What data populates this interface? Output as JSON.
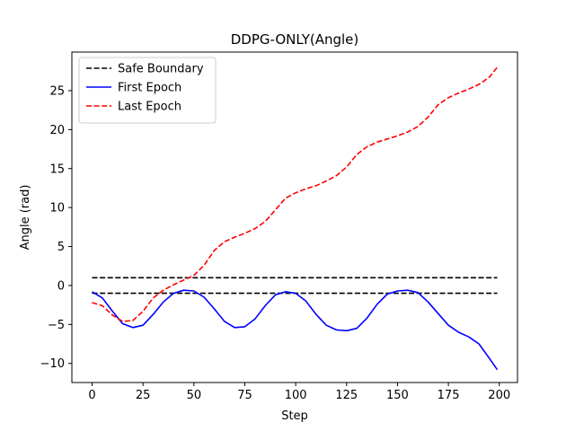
{
  "chart_data": {
    "type": "line",
    "title": "DDPG-ONLY(Angle)",
    "xlabel": "Step",
    "ylabel": "Angle (rad)",
    "xlim": [
      -9.95,
      208.95
    ],
    "ylim": [
      -12.45,
      29.95
    ],
    "xticks": [
      0,
      25,
      50,
      75,
      100,
      125,
      150,
      175,
      200
    ],
    "yticks": [
      -10,
      -5,
      0,
      5,
      10,
      15,
      20,
      25
    ],
    "legend_position": "upper-left",
    "grid": false,
    "series": [
      {
        "name": "Safe Boundary",
        "color": "#000000",
        "style": "dashed",
        "x": [
          0,
          199
        ],
        "y": [
          1,
          1
        ]
      },
      {
        "name": "",
        "color": "#000000",
        "style": "dashed",
        "x": [
          0,
          199
        ],
        "y": [
          -1,
          -1
        ]
      },
      {
        "name": "First Epoch",
        "color": "#0000ff",
        "style": "solid",
        "x": [
          0,
          5,
          10,
          15,
          20,
          25,
          30,
          35,
          40,
          45,
          50,
          55,
          60,
          65,
          70,
          75,
          80,
          85,
          90,
          95,
          100,
          105,
          110,
          115,
          120,
          125,
          130,
          135,
          140,
          145,
          150,
          155,
          160,
          165,
          170,
          175,
          180,
          185,
          190,
          195,
          199
        ],
        "y": [
          -0.8,
          -1.6,
          -3.3,
          -4.9,
          -5.4,
          -5.1,
          -3.7,
          -2.1,
          -1.0,
          -0.6,
          -0.7,
          -1.5,
          -3.0,
          -4.6,
          -5.4,
          -5.3,
          -4.3,
          -2.6,
          -1.2,
          -0.8,
          -1.0,
          -2.0,
          -3.7,
          -5.1,
          -5.7,
          -5.8,
          -5.5,
          -4.2,
          -2.4,
          -1.1,
          -0.7,
          -0.6,
          -0.9,
          -2.1,
          -3.6,
          -5.1,
          -6.0,
          -6.6,
          -7.5,
          -9.3,
          -10.8
        ]
      },
      {
        "name": "Last Epoch",
        "color": "#ff0000",
        "style": "dashed",
        "x": [
          0,
          5,
          10,
          15,
          20,
          25,
          30,
          35,
          40,
          45,
          50,
          55,
          60,
          65,
          70,
          75,
          80,
          85,
          90,
          95,
          100,
          105,
          110,
          115,
          120,
          125,
          130,
          135,
          140,
          145,
          150,
          155,
          160,
          165,
          170,
          175,
          180,
          185,
          190,
          195,
          199
        ],
        "y": [
          -2.2,
          -2.6,
          -3.8,
          -4.6,
          -4.5,
          -3.3,
          -1.6,
          -0.6,
          0.1,
          0.7,
          1.3,
          2.6,
          4.5,
          5.6,
          6.2,
          6.7,
          7.3,
          8.2,
          9.7,
          11.2,
          11.9,
          12.4,
          12.8,
          13.4,
          14.1,
          15.2,
          16.8,
          17.8,
          18.4,
          18.8,
          19.2,
          19.7,
          20.4,
          21.6,
          23.2,
          24.1,
          24.7,
          25.2,
          25.8,
          26.7,
          28.0
        ]
      }
    ]
  }
}
